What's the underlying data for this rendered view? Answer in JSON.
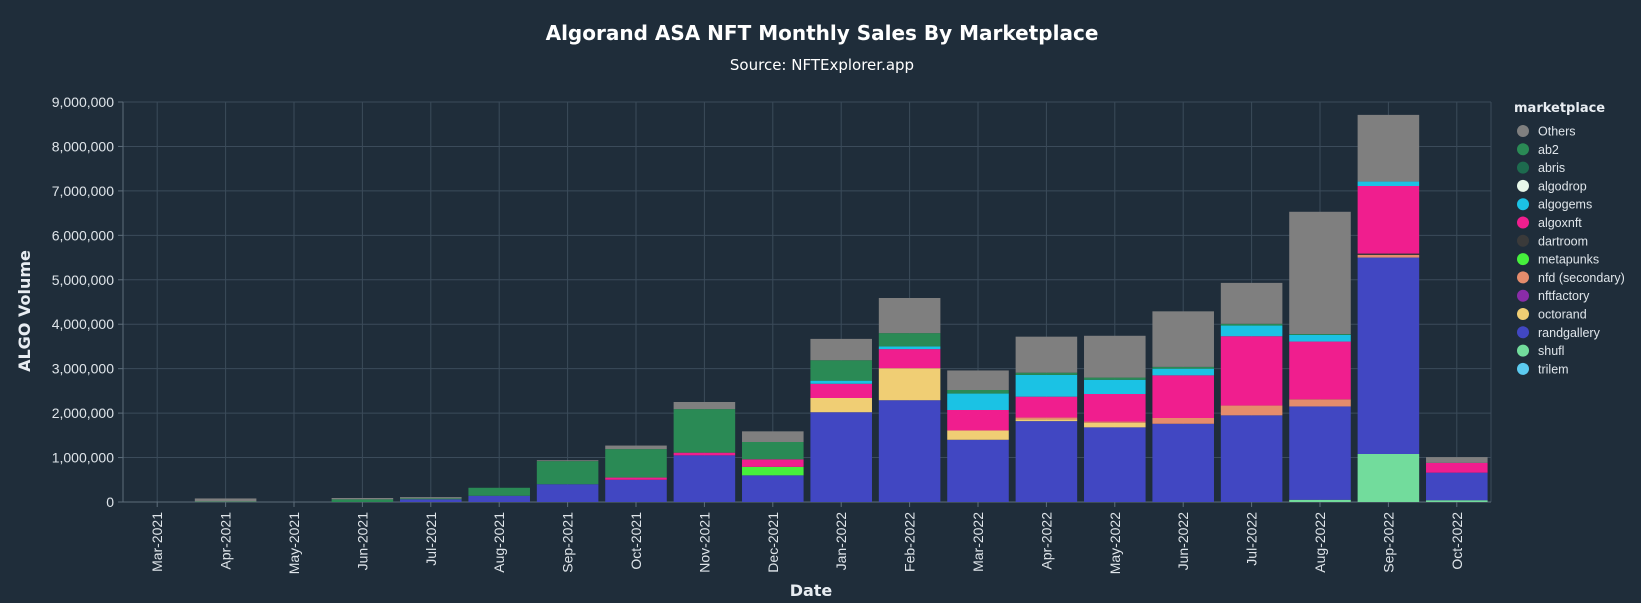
{
  "chart_data": {
    "type": "bar",
    "stacked": true,
    "title": "Algorand ASA NFT Monthly Sales By Marketplace",
    "subtitle": "Source: NFTExplorer.app",
    "xlabel": "Date",
    "ylabel": "ALGO Volume",
    "ylim": [
      0,
      9000000
    ],
    "yticks": [
      0,
      1000000,
      2000000,
      3000000,
      4000000,
      5000000,
      6000000,
      7000000,
      8000000,
      9000000
    ],
    "ytick_labels": [
      "0",
      "1,000,000",
      "2,000,000",
      "3,000,000",
      "4,000,000",
      "5,000,000",
      "6,000,000",
      "7,000,000",
      "8,000,000",
      "9,000,000"
    ],
    "grid": true,
    "legend_title": "marketplace",
    "legend_position": "right",
    "categories": [
      "Mar-2021",
      "Apr-2021",
      "May-2021",
      "Jun-2021",
      "Jul-2021",
      "Aug-2021",
      "Sep-2021",
      "Oct-2021",
      "Nov-2021",
      "Dec-2021",
      "Jan-2022",
      "Feb-2022",
      "Mar-2022",
      "Apr-2022",
      "May-2022",
      "Jun-2022",
      "Jul-2022",
      "Aug-2022",
      "Sep-2022",
      "Oct-2022"
    ],
    "series": [
      {
        "name": "shufl",
        "color": "#72dc9c",
        "values": [
          0,
          0,
          0,
          0,
          0,
          0,
          0,
          0,
          0,
          0,
          0,
          0,
          0,
          0,
          0,
          0,
          0,
          50000,
          1080000,
          40000
        ]
      },
      {
        "name": "randgallery",
        "color": "#4147c2",
        "values": [
          0,
          0,
          0,
          0,
          60000,
          140000,
          400000,
          500000,
          1050000,
          600000,
          2020000,
          2290000,
          1400000,
          1820000,
          1680000,
          1760000,
          1950000,
          2100000,
          4420000,
          620000
        ]
      },
      {
        "name": "metapunks",
        "color": "#46f03c",
        "values": [
          0,
          0,
          0,
          0,
          0,
          0,
          0,
          0,
          0,
          190000,
          0,
          0,
          0,
          0,
          0,
          0,
          0,
          0,
          0,
          0
        ]
      },
      {
        "name": "octorand",
        "color": "#f0ce74",
        "values": [
          0,
          0,
          0,
          0,
          0,
          0,
          0,
          0,
          0,
          0,
          320000,
          720000,
          210000,
          40000,
          100000,
          0,
          0,
          0,
          0,
          0
        ]
      },
      {
        "name": "nfd (secondary)",
        "color": "#e58c6c",
        "values": [
          0,
          0,
          0,
          0,
          0,
          0,
          0,
          0,
          0,
          0,
          0,
          0,
          0,
          40000,
          30000,
          130000,
          220000,
          160000,
          60000,
          0
        ]
      },
      {
        "name": "dartroom",
        "color": "#3a3a3a",
        "values": [
          0,
          0,
          0,
          0,
          0,
          0,
          0,
          0,
          0,
          0,
          0,
          0,
          0,
          0,
          0,
          0,
          0,
          0,
          30000,
          0
        ]
      },
      {
        "name": "algoxnft",
        "color": "#f01e8e",
        "values": [
          0,
          0,
          0,
          0,
          0,
          0,
          0,
          50000,
          60000,
          170000,
          320000,
          430000,
          460000,
          470000,
          620000,
          960000,
          1560000,
          1300000,
          1520000,
          220000
        ]
      },
      {
        "name": "algogems",
        "color": "#1bc2e4",
        "values": [
          0,
          0,
          0,
          0,
          0,
          0,
          0,
          0,
          0,
          0,
          70000,
          60000,
          370000,
          490000,
          320000,
          150000,
          240000,
          150000,
          100000,
          0
        ]
      },
      {
        "name": "abris",
        "color": "#1d6b4e",
        "values": [
          0,
          0,
          0,
          0,
          0,
          0,
          0,
          0,
          0,
          0,
          0,
          0,
          0,
          0,
          0,
          0,
          0,
          0,
          0,
          0
        ]
      },
      {
        "name": "ab2",
        "color": "#2a8a55",
        "values": [
          0,
          10000,
          0,
          60000,
          20000,
          180000,
          520000,
          640000,
          980000,
          390000,
          460000,
          300000,
          80000,
          50000,
          50000,
          40000,
          40000,
          20000,
          0,
          0
        ]
      },
      {
        "name": "Others",
        "color": "#7f7f7f",
        "values": [
          0,
          70000,
          0,
          30000,
          30000,
          0,
          20000,
          80000,
          160000,
          240000,
          480000,
          790000,
          440000,
          810000,
          940000,
          1250000,
          920000,
          2750000,
          1500000,
          130000
        ]
      }
    ],
    "legend": [
      {
        "name": "Others",
        "color": "#7f7f7f"
      },
      {
        "name": "ab2",
        "color": "#2a8a55"
      },
      {
        "name": "abris",
        "color": "#1d6b4e"
      },
      {
        "name": "algodrop",
        "color": "#e8f8ea"
      },
      {
        "name": "algogems",
        "color": "#1bc2e4"
      },
      {
        "name": "algoxnft",
        "color": "#f01e8e"
      },
      {
        "name": "dartroom",
        "color": "#3a3a3a"
      },
      {
        "name": "metapunks",
        "color": "#46f03c"
      },
      {
        "name": "nfd (secondary)",
        "color": "#e58c6c"
      },
      {
        "name": "nftfactory",
        "color": "#8a2ca8"
      },
      {
        "name": "octorand",
        "color": "#f0ce74"
      },
      {
        "name": "randgallery",
        "color": "#4147c2"
      },
      {
        "name": "shufl",
        "color": "#72dc9c"
      },
      {
        "name": "trilem",
        "color": "#5ccbf0"
      }
    ]
  }
}
